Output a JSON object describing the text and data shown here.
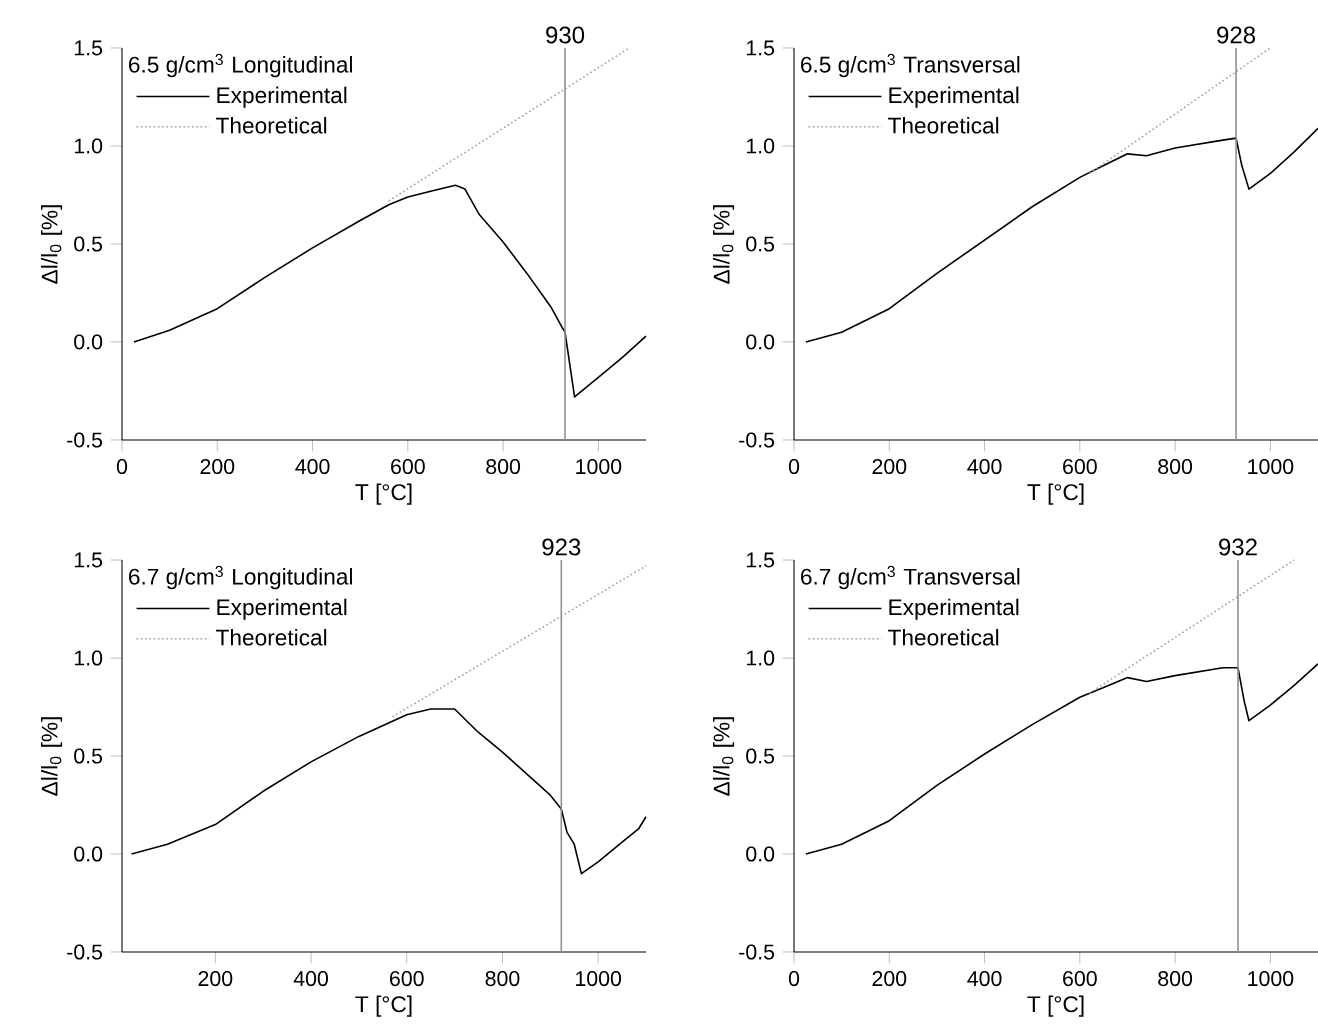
{
  "chart_data": [
    {
      "type": "line",
      "title": "6.5 g/cm$^{3}$ Longitudinal",
      "xlabel": "T [°C]",
      "ylabel": "Δl/l$_{0}$ [%]",
      "xlim": [
        0,
        1100
      ],
      "ylim": [
        -0.5,
        1.5
      ],
      "xticks": [
        0,
        200,
        400,
        600,
        800,
        1000
      ],
      "yticks": [
        {
          "value": -0.5,
          "label": "-0.5"
        },
        {
          "value": 0,
          "label": "0.0"
        },
        {
          "value": 0.5,
          "label": "0.5"
        },
        {
          "value": 1,
          "label": "1.0"
        },
        {
          "value": 1.5,
          "label": "1.5"
        }
      ],
      "legend": "top left",
      "grid": false,
      "ref_lines": [
        {
          "axis": "x",
          "value": 930,
          "label": "930",
          "color": "#909090"
        }
      ],
      "series": [
        {
          "name": "Experimental",
          "color": "#000000",
          "line_style": "solid",
          "x": [
            25,
            100,
            200,
            300,
            400,
            500,
            560,
            600,
            650,
            700,
            720,
            750,
            800,
            850,
            900,
            925,
            930,
            950,
            1000,
            1050,
            1100
          ],
          "values": [
            0,
            0.06,
            0.17,
            0.33,
            0.48,
            0.62,
            0.7,
            0.74,
            0.77,
            0.8,
            0.78,
            0.65,
            0.51,
            0.35,
            0.18,
            0.07,
            0.05,
            -0.28,
            -0.18,
            -0.08,
            0.03
          ]
        },
        {
          "name": "Theoretical",
          "color": "#a0a0a0",
          "line_style": "dotted",
          "x": [
            560,
            1065
          ],
          "values": [
            0.72,
            1.5
          ]
        }
      ]
    },
    {
      "type": "line",
      "title": "6.5 g/cm$^{3}$ Transversal",
      "xlabel": "T [°C]",
      "ylabel": "Δl/l$_{0}$ [%]",
      "xlim": [
        0,
        1100
      ],
      "ylim": [
        -0.5,
        1.5
      ],
      "xticks": [
        0,
        200,
        400,
        600,
        800,
        1000
      ],
      "yticks": [
        {
          "value": -0.5,
          "label": "-0.5"
        },
        {
          "value": 0,
          "label": "0.0"
        },
        {
          "value": 0.5,
          "label": "0.5"
        },
        {
          "value": 1,
          "label": "1.0"
        },
        {
          "value": 1.5,
          "label": "1.5"
        }
      ],
      "legend": "top left",
      "grid": false,
      "ref_lines": [
        {
          "axis": "x",
          "value": 928,
          "label": "928",
          "color": "#909090"
        }
      ],
      "series": [
        {
          "name": "Experimental",
          "color": "#000000",
          "line_style": "solid",
          "x": [
            25,
            100,
            200,
            300,
            400,
            500,
            600,
            650,
            700,
            740,
            800,
            900,
            928,
            940,
            955,
            1000,
            1050,
            1100
          ],
          "values": [
            0,
            0.05,
            0.17,
            0.35,
            0.52,
            0.69,
            0.84,
            0.9,
            0.96,
            0.95,
            0.99,
            1.03,
            1.04,
            0.9,
            0.78,
            0.86,
            0.97,
            1.09
          ]
        },
        {
          "name": "Theoretical",
          "color": "#a0a0a0",
          "line_style": "dotted",
          "x": [
            620,
            1000
          ],
          "values": [
            0.86,
            1.5
          ]
        }
      ]
    },
    {
      "type": "line",
      "title": "6.7 g/cm$^{3}$ Longitudinal",
      "xlabel": "T [°C]",
      "ylabel": "Δl/l$_{0}$ [%]",
      "xlim": [
        5,
        1100
      ],
      "ylim": [
        -0.5,
        1.5
      ],
      "xticks": [
        200,
        400,
        600,
        800,
        1000
      ],
      "yticks": [
        {
          "value": -0.5,
          "label": "-0.5"
        },
        {
          "value": 0,
          "label": "0.0"
        },
        {
          "value": 0.5,
          "label": "0.5"
        },
        {
          "value": 1,
          "label": "1.0"
        },
        {
          "value": 1.5,
          "label": "1.5"
        }
      ],
      "legend": "top left",
      "grid": false,
      "ref_lines": [
        {
          "axis": "x",
          "value": 923,
          "label": "923",
          "color": "#909090"
        }
      ],
      "series": [
        {
          "name": "Experimental",
          "color": "#000000",
          "line_style": "solid",
          "x": [
            25,
            100,
            200,
            300,
            400,
            500,
            600,
            650,
            700,
            750,
            800,
            850,
            900,
            923,
            935,
            950,
            965,
            1000,
            1050,
            1085,
            1100
          ],
          "values": [
            0,
            0.05,
            0.15,
            0.32,
            0.47,
            0.6,
            0.71,
            0.74,
            0.74,
            0.62,
            0.52,
            0.41,
            0.3,
            0.23,
            0.11,
            0.05,
            -0.1,
            -0.04,
            0.06,
            0.13,
            0.19
          ]
        },
        {
          "name": "Theoretical",
          "color": "#a0a0a0",
          "line_style": "dotted",
          "x": [
            570,
            1100
          ],
          "values": [
            0.7,
            1.47
          ]
        }
      ]
    },
    {
      "type": "line",
      "title": "6.7 g/cm$^{3}$ Transversal",
      "xlabel": "T [°C]",
      "ylabel": "Δl/l$_{0}$ [%]",
      "xlim": [
        0,
        1100
      ],
      "ylim": [
        -0.5,
        1.5
      ],
      "xticks": [
        0,
        200,
        400,
        600,
        800,
        1000
      ],
      "yticks": [
        {
          "value": -0.5,
          "label": "-0.5"
        },
        {
          "value": 0,
          "label": "0.0"
        },
        {
          "value": 0.5,
          "label": "0.5"
        },
        {
          "value": 1,
          "label": "1.0"
        },
        {
          "value": 1.5,
          "label": "1.5"
        }
      ],
      "legend": "top left",
      "grid": false,
      "ref_lines": [
        {
          "axis": "x",
          "value": 932,
          "label": "932",
          "color": "#909090"
        }
      ],
      "series": [
        {
          "name": "Experimental",
          "color": "#000000",
          "line_style": "solid",
          "x": [
            25,
            100,
            200,
            300,
            400,
            500,
            600,
            650,
            700,
            740,
            800,
            900,
            932,
            945,
            955,
            1000,
            1050,
            1100
          ],
          "values": [
            0,
            0.05,
            0.17,
            0.35,
            0.51,
            0.66,
            0.8,
            0.85,
            0.9,
            0.88,
            0.91,
            0.95,
            0.95,
            0.78,
            0.68,
            0.76,
            0.86,
            0.97
          ]
        },
        {
          "name": "Theoretical",
          "color": "#a0a0a0",
          "line_style": "dotted",
          "x": [
            620,
            1050
          ],
          "values": [
            0.82,
            1.5
          ]
        }
      ]
    }
  ]
}
